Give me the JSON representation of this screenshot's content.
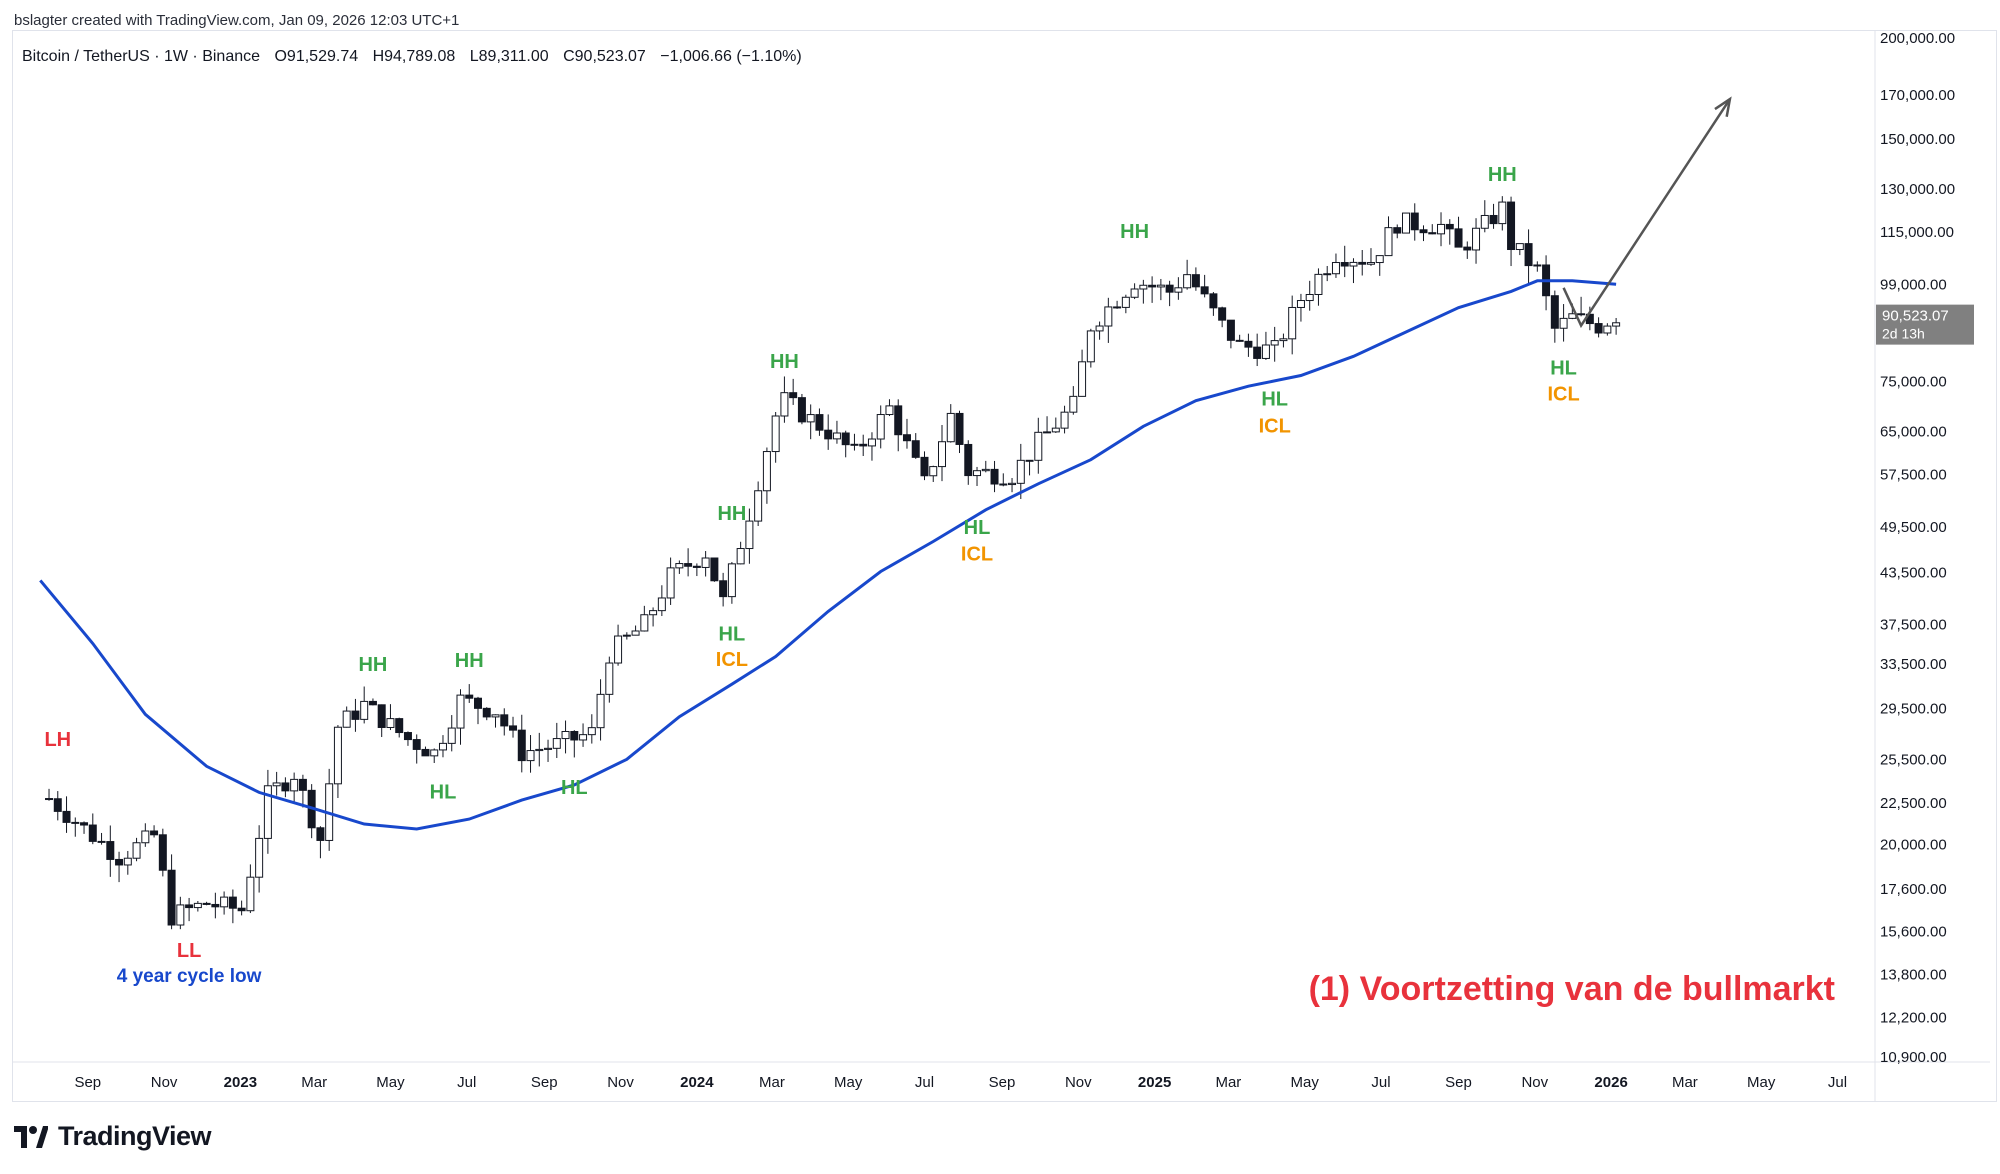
{
  "credit": "bslagter created with TradingView.com, Jan 09, 2026 12:03 UTC+1",
  "header": {
    "symbol": "Bitcoin / TetherUS · 1W · Binance",
    "open": "O91,529.74",
    "high": "H94,789.08",
    "low": "L89,311.00",
    "close": "C90,523.07",
    "change": "−1,006.66 (−1.10%)"
  },
  "footer": {
    "brand": "TradingView"
  },
  "colors": {
    "ma_line": "#1848cc",
    "hh_hl": "#3aa54a",
    "lh_ll": "#e8323c",
    "icl": "#f29400",
    "annotation": "#e8323c",
    "cycle_low": "#1848cc",
    "price_tag_bg": "#808080",
    "arrow": "#555555"
  },
  "chart_data": {
    "type": "candlestick",
    "scale": "log",
    "y_ticks": [
      "200,000.00",
      "170,000.00",
      "150,000.00",
      "130,000.00",
      "115,000.00",
      "99,000.00",
      "75,000.00",
      "65,000.00",
      "57,500.00",
      "49,500.00",
      "43,500.00",
      "37,500.00",
      "33,500.00",
      "29,500.00",
      "25,500.00",
      "22,500.00",
      "20,000.00",
      "17,600.00",
      "15,600.00",
      "13,800.00",
      "12,200.00",
      "10,900.00"
    ],
    "x_ticks": [
      {
        "label": "Sep",
        "bold": false
      },
      {
        "label": "Nov",
        "bold": false
      },
      {
        "label": "2023",
        "bold": true
      },
      {
        "label": "Mar",
        "bold": false
      },
      {
        "label": "May",
        "bold": false
      },
      {
        "label": "Jul",
        "bold": false
      },
      {
        "label": "Sep",
        "bold": false
      },
      {
        "label": "Nov",
        "bold": false
      },
      {
        "label": "2024",
        "bold": true
      },
      {
        "label": "Mar",
        "bold": false
      },
      {
        "label": "May",
        "bold": false
      },
      {
        "label": "Jul",
        "bold": false
      },
      {
        "label": "Sep",
        "bold": false
      },
      {
        "label": "Nov",
        "bold": false
      },
      {
        "label": "2025",
        "bold": true
      },
      {
        "label": "Mar",
        "bold": false
      },
      {
        "label": "May",
        "bold": false
      },
      {
        "label": "Jul",
        "bold": false
      },
      {
        "label": "Sep",
        "bold": false
      },
      {
        "label": "Nov",
        "bold": false
      },
      {
        "label": "2026",
        "bold": true
      },
      {
        "label": "Mar",
        "bold": false
      },
      {
        "label": "May",
        "bold": false
      },
      {
        "label": "Jul",
        "bold": false
      }
    ],
    "last_price": {
      "value": "90,523.07",
      "countdown": "2d 13h"
    },
    "price_path": [
      [
        "2022-08-01",
        22800
      ],
      [
        "2022-09-05",
        20500
      ],
      [
        "2022-09-26",
        19300
      ],
      [
        "2022-10-24",
        20500
      ],
      [
        "2022-11-07",
        16300
      ],
      [
        "2022-12-05",
        16900
      ],
      [
        "2023-01-02",
        16600
      ],
      [
        "2023-01-23",
        23000
      ],
      [
        "2023-02-13",
        24500
      ],
      [
        "2023-03-06",
        20300
      ],
      [
        "2023-03-20",
        28000
      ],
      [
        "2023-04-10",
        29800
      ],
      [
        "2023-05-15",
        27000
      ],
      [
        "2023-06-05",
        26000
      ],
      [
        "2023-06-26",
        30200
      ],
      [
        "2023-07-24",
        29300
      ],
      [
        "2023-08-14",
        26000
      ],
      [
        "2023-09-11",
        26600
      ],
      [
        "2023-10-09",
        27500
      ],
      [
        "2023-10-23",
        34500
      ],
      [
        "2023-11-20",
        37500
      ],
      [
        "2023-12-11",
        43000
      ],
      [
        "2024-01-08",
        46000
      ],
      [
        "2024-01-22",
        40000
      ],
      [
        "2024-02-12",
        51500
      ],
      [
        "2024-03-04",
        68000
      ],
      [
        "2024-03-11",
        71000
      ],
      [
        "2024-04-15",
        65000
      ],
      [
        "2024-05-06",
        61000
      ],
      [
        "2024-06-03",
        69500
      ],
      [
        "2024-07-01",
        56000
      ],
      [
        "2024-07-22",
        68000
      ],
      [
        "2024-08-05",
        58000
      ],
      [
        "2024-09-09",
        57500
      ],
      [
        "2024-09-30",
        63000
      ],
      [
        "2024-10-28",
        70000
      ],
      [
        "2024-11-11",
        88000
      ],
      [
        "2024-12-16",
        100000
      ],
      [
        "2025-01-13",
        97000
      ],
      [
        "2025-01-27",
        102000
      ],
      [
        "2025-02-24",
        88000
      ],
      [
        "2025-03-10",
        83000
      ],
      [
        "2025-04-07",
        82000
      ],
      [
        "2025-04-28",
        95000
      ],
      [
        "2025-05-26",
        108000
      ],
      [
        "2025-06-23",
        106000
      ],
      [
        "2025-07-14",
        118000
      ],
      [
        "2025-08-18",
        117000
      ],
      [
        "2025-09-01",
        109000
      ],
      [
        "2025-10-06",
        123000
      ],
      [
        "2025-10-13",
        111000
      ],
      [
        "2025-11-03",
        103000
      ],
      [
        "2025-11-17",
        87000
      ],
      [
        "2025-12-01",
        90000
      ],
      [
        "2025-12-22",
        88000
      ],
      [
        "2026-01-05",
        90500
      ]
    ],
    "moving_average": [
      [
        "2022-07-25",
        42500
      ],
      [
        "2022-09-05",
        35500
      ],
      [
        "2022-10-17",
        29000
      ],
      [
        "2022-12-05",
        25000
      ],
      [
        "2023-01-16",
        23200
      ],
      [
        "2023-02-27",
        22200
      ],
      [
        "2023-04-10",
        21200
      ],
      [
        "2023-05-22",
        20900
      ],
      [
        "2023-07-03",
        21500
      ],
      [
        "2023-08-14",
        22700
      ],
      [
        "2023-09-25",
        23700
      ],
      [
        "2023-11-06",
        25500
      ],
      [
        "2023-12-18",
        28800
      ],
      [
        "2024-01-29",
        31600
      ],
      [
        "2024-03-04",
        34200
      ],
      [
        "2024-04-15",
        38900
      ],
      [
        "2024-05-27",
        43600
      ],
      [
        "2024-07-08",
        47500
      ],
      [
        "2024-08-19",
        52000
      ],
      [
        "2024-09-30",
        56000
      ],
      [
        "2024-11-11",
        60000
      ],
      [
        "2024-12-23",
        66000
      ],
      [
        "2025-02-03",
        71000
      ],
      [
        "2025-03-17",
        74000
      ],
      [
        "2025-04-28",
        76300
      ],
      [
        "2025-06-09",
        80600
      ],
      [
        "2025-07-21",
        86400
      ],
      [
        "2025-09-01",
        92600
      ],
      [
        "2025-10-13",
        97000
      ],
      [
        "2025-11-03",
        100000
      ],
      [
        "2025-12-01",
        100000
      ],
      [
        "2026-01-05",
        99000
      ]
    ],
    "swing_labels": [
      {
        "text": "LH",
        "type": "red",
        "date": "2022-08-08",
        "price": 26500
      },
      {
        "text": "LL",
        "type": "red",
        "date": "2022-11-21",
        "price": 14500
      },
      {
        "text": "HH",
        "type": "green",
        "date": "2023-04-17",
        "price": 32800
      },
      {
        "text": "HH",
        "type": "green",
        "date": "2023-07-03",
        "price": 33200
      },
      {
        "text": "HL",
        "type": "green",
        "date": "2023-06-12",
        "price": 22800
      },
      {
        "text": "HL",
        "type": "green",
        "date": "2023-09-25",
        "price": 23100
      },
      {
        "text": "HH",
        "type": "green",
        "date": "2024-03-11",
        "price": 78000
      },
      {
        "text": "HH",
        "type": "green",
        "date": "2024-01-29",
        "price": 50500
      },
      {
        "text": "HL",
        "type": "green",
        "date": "2024-01-29",
        "price": 35800
      },
      {
        "text": "ICL",
        "type": "orange",
        "date": "2024-01-29",
        "price": 33300
      },
      {
        "text": "HL",
        "type": "green",
        "date": "2024-08-12",
        "price": 48500
      },
      {
        "text": "ICL",
        "type": "orange",
        "date": "2024-08-12",
        "price": 45000
      },
      {
        "text": "HH",
        "type": "green",
        "date": "2024-12-16",
        "price": 113000
      },
      {
        "text": "HL",
        "type": "green",
        "date": "2025-04-07",
        "price": 70000
      },
      {
        "text": "ICL",
        "type": "orange",
        "date": "2025-04-07",
        "price": 64800
      },
      {
        "text": "HH",
        "type": "green",
        "date": "2025-10-06",
        "price": 133000
      },
      {
        "text": "HL",
        "type": "green",
        "date": "2025-11-24",
        "price": 76500
      },
      {
        "text": "ICL",
        "type": "orange",
        "date": "2025-11-24",
        "price": 71000
      }
    ],
    "cycle_low_label": {
      "text": "4 year cycle low",
      "date": "2022-11-21",
      "price": 13500
    },
    "annotation": {
      "text": "(1) Voortzetting van de bullmarkt"
    },
    "projection": [
      [
        "2025-11-24",
        98000
      ],
      [
        "2025-12-08",
        88000
      ],
      [
        "2026-04-06",
        168000
      ]
    ]
  }
}
